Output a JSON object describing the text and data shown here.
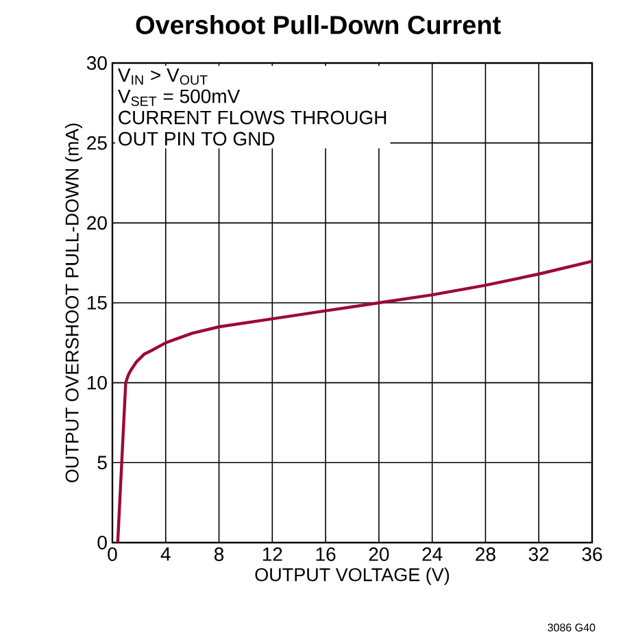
{
  "chart_data": {
    "type": "line",
    "title": "Overshoot Pull-Down Current",
    "xlabel": "OUTPUT VOLTAGE (V)",
    "ylabel": "OUTPUT OVERSHOOT PULL-DOWN (mA)",
    "annotations": [
      "V$_{IN}$ > V$_{OUT}$",
      "V$_{SET}$ = 500mV",
      "CURRENT FLOWS THROUGH",
      "OUT PIN TO GND",
      "3086 G40"
    ],
    "x": [
      0.4,
      0.7,
      1.0,
      1.2,
      1.4,
      1.8,
      2.4,
      2.9,
      4,
      6,
      8,
      12,
      16,
      20,
      24,
      28,
      32,
      36
    ],
    "series": [
      {
        "color": "#9b0a35",
        "values": [
          0,
          5,
          10,
          10.5,
          10.8,
          11.3,
          11.8,
          12.0,
          12.5,
          13.1,
          13.5,
          14.0,
          14.5,
          15.0,
          15.5,
          16.1,
          16.8,
          17.6
        ]
      }
    ],
    "xlim": [
      0,
      36
    ],
    "ylim": [
      0,
      30
    ],
    "xticks": [
      0,
      4,
      8,
      12,
      16,
      20,
      24,
      28,
      32,
      36
    ],
    "yticks": [
      0,
      5,
      10,
      15,
      20,
      25,
      30
    ],
    "grid": true,
    "legend": false,
    "marker": "none",
    "line_style": "solid"
  }
}
